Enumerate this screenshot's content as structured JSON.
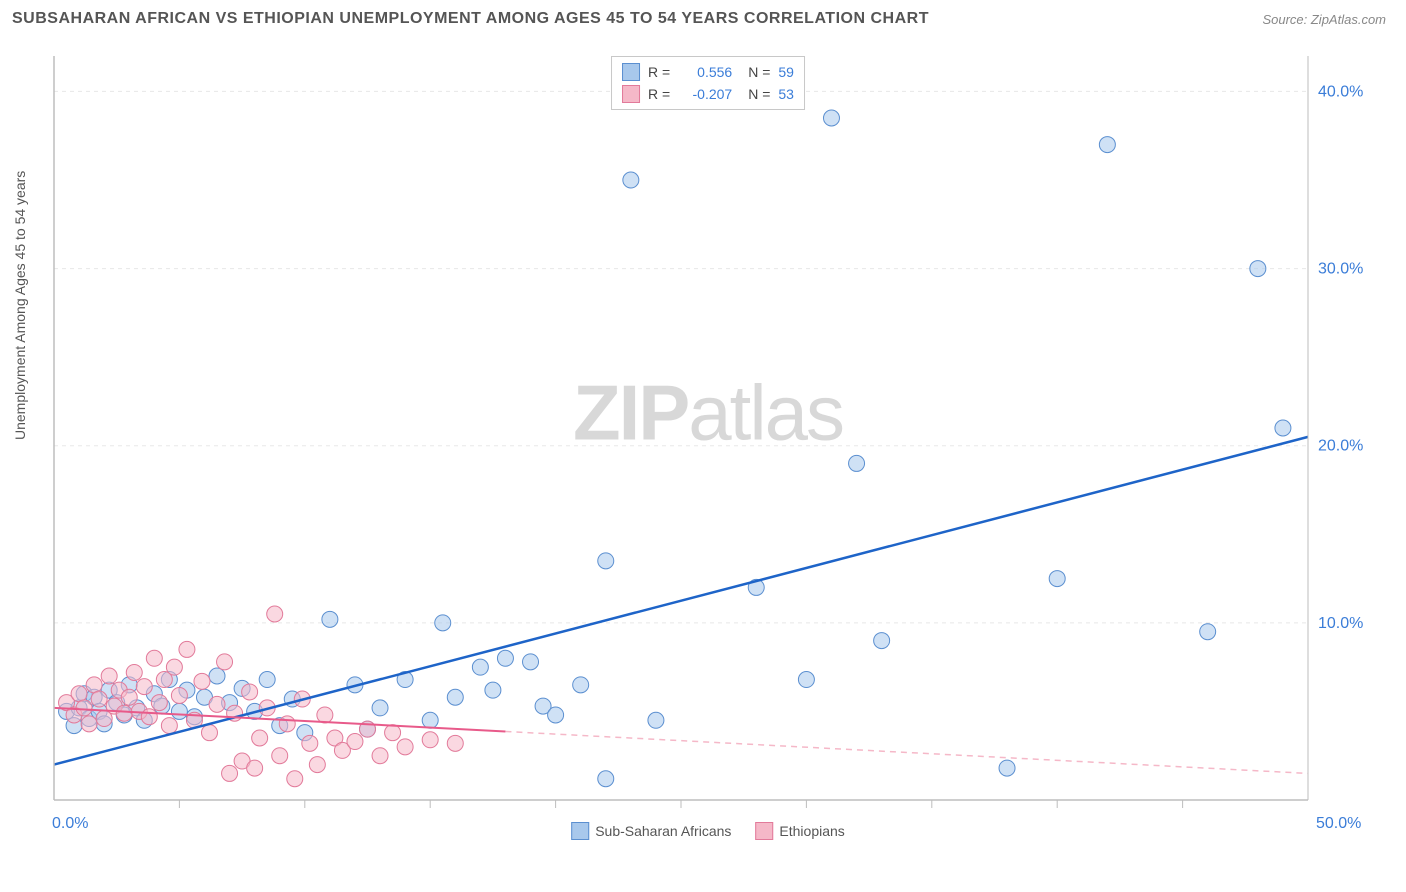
{
  "header": {
    "title": "SUBSAHARAN AFRICAN VS ETHIOPIAN UNEMPLOYMENT AMONG AGES 45 TO 54 YEARS CORRELATION CHART",
    "source": "Source: ZipAtlas.com"
  },
  "y_axis_label": "Unemployment Among Ages 45 to 54 years",
  "watermark": {
    "zip": "ZIP",
    "atlas": "atlas"
  },
  "chart": {
    "type": "scatter-with-regression",
    "xlim": [
      0,
      50
    ],
    "ylim": [
      0,
      42
    ],
    "background_color": "#ffffff",
    "grid_color": "#e8e8e8",
    "axis_color": "#bdbdbd",
    "tick_color": "#bdbdbd",
    "y_ticks": [
      10,
      20,
      30,
      40
    ],
    "y_tick_labels": [
      "10.0%",
      "20.0%",
      "30.0%",
      "40.0%"
    ],
    "x_tick_labels": {
      "left": "0.0%",
      "right": "50.0%"
    },
    "x_minor_ticks": [
      5,
      10,
      15,
      20,
      25,
      30,
      35,
      40,
      45
    ],
    "axis_label_color": "#3b7dd8",
    "axis_label_fontsize": 16,
    "marker_radius": 8,
    "marker_opacity": 0.55,
    "series": [
      {
        "name": "Sub-Saharan Africans",
        "fill": "#a8c8ec",
        "stroke": "#5b8fd0",
        "line_color": "#1e64c8",
        "line_dash_color": "#a8c8ec",
        "line_width": 2.5,
        "R": "0.556",
        "N": "59",
        "regression": {
          "x1": 0,
          "y1": 2.0,
          "x2": 50,
          "y2": 20.5,
          "solid_until_x": 50
        },
        "points": [
          [
            0.5,
            5
          ],
          [
            0.8,
            4.2
          ],
          [
            1,
            5.2
          ],
          [
            1.2,
            6
          ],
          [
            1.4,
            4.6
          ],
          [
            1.6,
            5.8
          ],
          [
            1.8,
            5
          ],
          [
            2,
            4.3
          ],
          [
            2.2,
            6.2
          ],
          [
            2.5,
            5.5
          ],
          [
            2.8,
            4.8
          ],
          [
            3,
            6.5
          ],
          [
            3.3,
            5.2
          ],
          [
            3.6,
            4.5
          ],
          [
            4,
            6
          ],
          [
            4.3,
            5.3
          ],
          [
            4.6,
            6.8
          ],
          [
            5,
            5
          ],
          [
            5.3,
            6.2
          ],
          [
            5.6,
            4.7
          ],
          [
            6,
            5.8
          ],
          [
            6.5,
            7
          ],
          [
            7,
            5.5
          ],
          [
            7.5,
            6.3
          ],
          [
            8,
            5
          ],
          [
            8.5,
            6.8
          ],
          [
            9,
            4.2
          ],
          [
            9.5,
            5.7
          ],
          [
            10,
            3.8
          ],
          [
            11,
            10.2
          ],
          [
            12,
            6.5
          ],
          [
            12.5,
            4
          ],
          [
            13,
            5.2
          ],
          [
            14,
            6.8
          ],
          [
            15,
            4.5
          ],
          [
            15.5,
            10
          ],
          [
            16,
            5.8
          ],
          [
            17,
            7.5
          ],
          [
            17.5,
            6.2
          ],
          [
            18,
            8
          ],
          [
            19,
            7.8
          ],
          [
            19.5,
            5.3
          ],
          [
            20,
            4.8
          ],
          [
            21,
            6.5
          ],
          [
            22,
            1.2
          ],
          [
            22,
            13.5
          ],
          [
            23,
            35
          ],
          [
            24,
            4.5
          ],
          [
            28,
            12
          ],
          [
            30,
            6.8
          ],
          [
            31,
            38.5
          ],
          [
            32,
            19
          ],
          [
            33,
            9
          ],
          [
            38,
            1.8
          ],
          [
            40,
            12.5
          ],
          [
            42,
            37
          ],
          [
            46,
            9.5
          ],
          [
            48,
            30
          ],
          [
            49,
            21
          ]
        ]
      },
      {
        "name": "Ethiopians",
        "fill": "#f5b8c8",
        "stroke": "#e27a9a",
        "line_color": "#e85a8a",
        "line_dash_color": "#f5b8c8",
        "line_width": 2,
        "R": "-0.207",
        "N": "53",
        "regression": {
          "x1": 0,
          "y1": 5.2,
          "x2": 50,
          "y2": 1.5,
          "solid_until_x": 18
        },
        "points": [
          [
            0.5,
            5.5
          ],
          [
            0.8,
            4.8
          ],
          [
            1,
            6
          ],
          [
            1.2,
            5.2
          ],
          [
            1.4,
            4.3
          ],
          [
            1.6,
            6.5
          ],
          [
            1.8,
            5.7
          ],
          [
            2,
            4.6
          ],
          [
            2.2,
            7
          ],
          [
            2.4,
            5.3
          ],
          [
            2.6,
            6.2
          ],
          [
            2.8,
            4.9
          ],
          [
            3,
            5.8
          ],
          [
            3.2,
            7.2
          ],
          [
            3.4,
            5
          ],
          [
            3.6,
            6.4
          ],
          [
            3.8,
            4.7
          ],
          [
            4,
            8
          ],
          [
            4.2,
            5.5
          ],
          [
            4.4,
            6.8
          ],
          [
            4.6,
            4.2
          ],
          [
            4.8,
            7.5
          ],
          [
            5,
            5.9
          ],
          [
            5.3,
            8.5
          ],
          [
            5.6,
            4.5
          ],
          [
            5.9,
            6.7
          ],
          [
            6.2,
            3.8
          ],
          [
            6.5,
            5.4
          ],
          [
            6.8,
            7.8
          ],
          [
            7,
            1.5
          ],
          [
            7.2,
            4.9
          ],
          [
            7.5,
            2.2
          ],
          [
            7.8,
            6.1
          ],
          [
            8,
            1.8
          ],
          [
            8.2,
            3.5
          ],
          [
            8.5,
            5.2
          ],
          [
            8.8,
            10.5
          ],
          [
            9,
            2.5
          ],
          [
            9.3,
            4.3
          ],
          [
            9.6,
            1.2
          ],
          [
            9.9,
            5.7
          ],
          [
            10.2,
            3.2
          ],
          [
            10.5,
            2
          ],
          [
            10.8,
            4.8
          ],
          [
            11.2,
            3.5
          ],
          [
            11.5,
            2.8
          ],
          [
            12,
            3.3
          ],
          [
            12.5,
            4
          ],
          [
            13,
            2.5
          ],
          [
            13.5,
            3.8
          ],
          [
            14,
            3
          ],
          [
            15,
            3.4
          ],
          [
            16,
            3.2
          ]
        ]
      }
    ]
  },
  "legend_bottom": [
    {
      "label": "Sub-Saharan Africans",
      "fill": "#a8c8ec",
      "stroke": "#5b8fd0"
    },
    {
      "label": "Ethiopians",
      "fill": "#f5b8c8",
      "stroke": "#e27a9a"
    }
  ]
}
